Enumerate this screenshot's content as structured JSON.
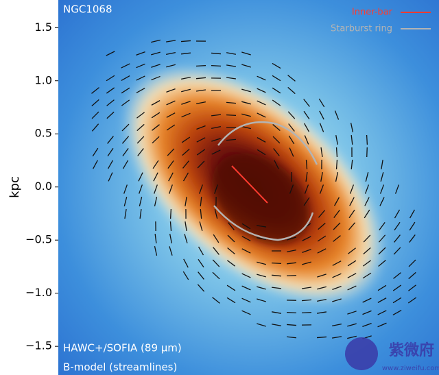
{
  "chart_data": {
    "type": "image",
    "ylabel": "kpc",
    "ylim": [
      -1.77,
      1.76
    ],
    "yticks": [
      {
        "value": -1.5,
        "label": "−1.5"
      },
      {
        "value": -1.0,
        "label": "−1.0"
      },
      {
        "value": -0.5,
        "label": "−0.5"
      },
      {
        "value": 0,
        "label": "0.0"
      },
      0.5,
      {
        "value": 1.0,
        "label": "1.0"
      },
      1.5
    ],
    "object_label": "NGC1068",
    "caption": [
      "HAWC+/SOFIA (89 μm)",
      "B-model (streamlines)"
    ],
    "legend": [
      {
        "name": "Inner-bar",
        "color": "#ff3b30"
      },
      {
        "name": "Starburst ring",
        "color": "#b4b4b4"
      }
    ],
    "watermark": [
      "紫微府",
      "www.ziweifu.com"
    ]
  }
}
